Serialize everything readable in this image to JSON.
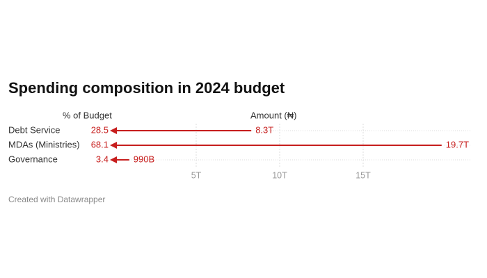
{
  "chart_data": {
    "type": "arrow",
    "title": "Spending composition in 2024 budget",
    "categories": [
      "Debt Service",
      "MDAs (Ministries)",
      "Governance"
    ],
    "series": [
      {
        "name": "% of Budget",
        "values": [
          28.5,
          68.1,
          3.4
        ],
        "color": "#c71e1d"
      },
      {
        "name": "Amount (₦)",
        "values": [
          8.3,
          19.7,
          0.99
        ],
        "value_labels": [
          "8.3T",
          "19.7T",
          "990B"
        ],
        "color": "#c71e1d"
      }
    ],
    "xlim": [
      0,
      20
    ],
    "xticks": [
      {
        "value": 5,
        "label": "5T"
      },
      {
        "value": 10,
        "label": "10T"
      },
      {
        "value": 15,
        "label": "15T"
      }
    ],
    "grid": true,
    "footer": "Created with Datawrapper"
  }
}
